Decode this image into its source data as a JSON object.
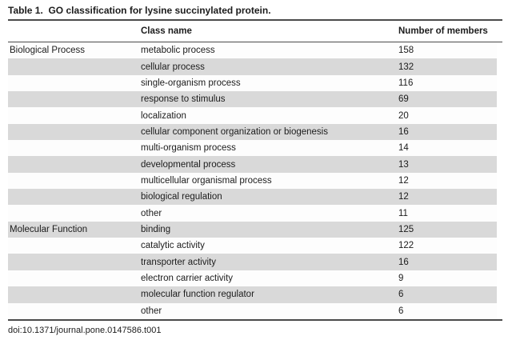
{
  "title": "Table 1.  GO classification for lysine succinylated protein.",
  "header": {
    "class_name": "Class name",
    "members": "Number of members"
  },
  "sections": [
    {
      "category": "Biological Process",
      "rows": [
        {
          "class_name": "metabolic process",
          "members": "158"
        },
        {
          "class_name": "cellular process",
          "members": "132"
        },
        {
          "class_name": "single-organism process",
          "members": "116"
        },
        {
          "class_name": "response to stimulus",
          "members": "69"
        },
        {
          "class_name": "localization",
          "members": "20"
        },
        {
          "class_name": "cellular component organization or biogenesis",
          "members": "16"
        },
        {
          "class_name": "multi-organism process",
          "members": "14"
        },
        {
          "class_name": "developmental process",
          "members": "13"
        },
        {
          "class_name": "multicellular organismal process",
          "members": "12"
        },
        {
          "class_name": "biological regulation",
          "members": "12"
        },
        {
          "class_name": "other",
          "members": "11"
        }
      ]
    },
    {
      "category": "Molecular Function",
      "rows": [
        {
          "class_name": "binding",
          "members": "125"
        },
        {
          "class_name": "catalytic activity",
          "members": "122"
        },
        {
          "class_name": "transporter activity",
          "members": "16"
        },
        {
          "class_name": "electron carrier activity",
          "members": "9"
        },
        {
          "class_name": "molecular function regulator",
          "members": "6"
        },
        {
          "class_name": "other",
          "members": "6"
        }
      ]
    }
  ],
  "footer": {
    "doi": "doi:10.1371/journal.pone.0147586.t001"
  },
  "colors": {
    "stripe": "#d9d9d9",
    "rule": "#4a4a4a",
    "text": "#1c1c1c",
    "background": "#ffffff"
  }
}
